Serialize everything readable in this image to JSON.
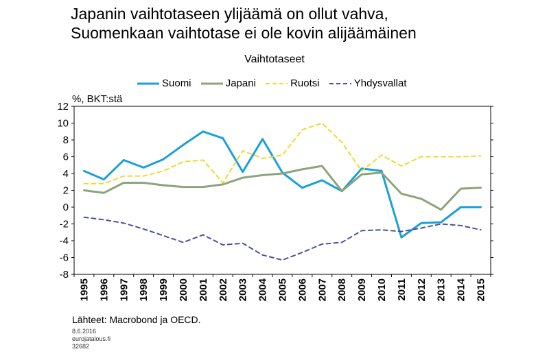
{
  "header": {
    "title_line1": "Japanin vaihtotaseen ylijäämä on ollut vahva,",
    "title_line2": "Suomenkaan vaihtotase ei ole kovin alijäämäinen"
  },
  "footer": {
    "sources": "Lähteet: Macrobond ja OECD.",
    "date": "8.6.2016",
    "site": "eurojatalous.fi",
    "id": "32682"
  },
  "chart_data": {
    "type": "line",
    "title": "Vaihtotaseet",
    "ylabel": "%, BKT:stä",
    "xlabel": "",
    "ylim": [
      -8,
      12
    ],
    "yticks": [
      -8,
      -6,
      -4,
      -2,
      0,
      2,
      4,
      6,
      8,
      10,
      12
    ],
    "grid": false,
    "legend_position": "top",
    "x": [
      "1995",
      "1996",
      "1997",
      "1998",
      "1999",
      "2000",
      "2001",
      "2002",
      "2003",
      "2004",
      "2005",
      "2006",
      "2007",
      "2008",
      "2009",
      "2010",
      "2011",
      "2012",
      "2013",
      "2014",
      "2015"
    ],
    "series": [
      {
        "name": "Suomi",
        "color": "#1a9fd8",
        "style": "solid",
        "width": 3,
        "values": [
          4.3,
          3.3,
          5.6,
          4.7,
          5.7,
          7.4,
          9.0,
          8.2,
          4.2,
          8.1,
          4.1,
          2.3,
          3.2,
          1.9,
          4.6,
          4.3,
          -3.6,
          -1.9,
          -1.8,
          0.0,
          0.0
        ]
      },
      {
        "name": "Japani",
        "color": "#8aa57a",
        "style": "solid",
        "width": 3,
        "values": [
          2.0,
          1.7,
          2.9,
          2.9,
          2.6,
          2.4,
          2.4,
          2.7,
          3.5,
          3.8,
          4.0,
          4.5,
          4.9,
          1.9,
          3.9,
          4.1,
          1.6,
          1.0,
          -0.3,
          2.2,
          2.3
        ]
      },
      {
        "name": "Ruotsi",
        "color": "#f2d82e",
        "style": "dashed",
        "width": 2,
        "values": [
          2.8,
          2.8,
          3.7,
          3.7,
          4.3,
          5.4,
          5.6,
          2.9,
          6.7,
          5.8,
          6.2,
          9.2,
          10.0,
          7.7,
          4.3,
          6.2,
          4.9,
          6.0,
          6.0,
          6.0,
          6.1
        ]
      },
      {
        "name": "Yhdysvallat",
        "color": "#4c4f9a",
        "style": "dashed",
        "width": 2,
        "values": [
          -1.2,
          -1.5,
          -1.9,
          -2.6,
          -3.4,
          -4.2,
          -3.3,
          -4.5,
          -4.3,
          -5.7,
          -6.3,
          -5.4,
          -4.4,
          -4.2,
          -2.8,
          -2.7,
          -2.9,
          -2.5,
          -2.0,
          -2.2,
          -2.7
        ]
      }
    ]
  }
}
